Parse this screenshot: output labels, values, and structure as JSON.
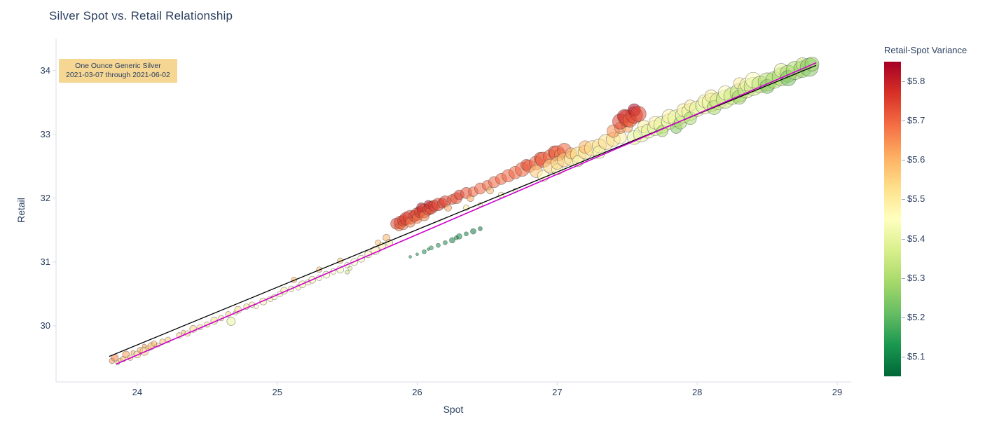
{
  "chart_data": {
    "type": "scatter",
    "title": "Silver Spot vs. Retail Relationship",
    "xlabel": "Spot",
    "ylabel": "Retail",
    "xlim": [
      23.42,
      29.1
    ],
    "ylim": [
      29.12,
      34.5
    ],
    "xticks": [
      24,
      25,
      26,
      27,
      28,
      29
    ],
    "yticks": [
      30,
      31,
      32,
      33,
      34
    ],
    "grid": false,
    "annotation": {
      "line1": "One Ounce Generic Silver",
      "line2": "2021-03-07 through 2021-06-02",
      "bg_color": "#f5d693"
    },
    "colorbar": {
      "title": "Retail-Spot Variance",
      "min": 5.05,
      "max": 5.85,
      "ticks": [
        {
          "value": 5.8,
          "label": "$5.8"
        },
        {
          "value": 5.7,
          "label": "$5.7"
        },
        {
          "value": 5.6,
          "label": "$5.6"
        },
        {
          "value": 5.5,
          "label": "$5.5"
        },
        {
          "value": 5.4,
          "label": "$5.4"
        },
        {
          "value": 5.3,
          "label": "$5.3"
        },
        {
          "value": 5.2,
          "label": "$5.2"
        },
        {
          "value": 5.1,
          "label": "$5.1"
        }
      ]
    },
    "colorscale": [
      [
        0,
        "#006837"
      ],
      [
        0.1,
        "#1a9850"
      ],
      [
        0.2,
        "#66bd63"
      ],
      [
        0.3,
        "#a6d96a"
      ],
      [
        0.4,
        "#d9ef8b"
      ],
      [
        0.5,
        "#ffffbf"
      ],
      [
        0.6,
        "#fee08b"
      ],
      [
        0.7,
        "#fdae61"
      ],
      [
        0.8,
        "#f46d43"
      ],
      [
        0.9,
        "#d73027"
      ],
      [
        1,
        "#a50026"
      ]
    ],
    "color_note": "marker color = retail - spot (variance)",
    "trend_lines": [
      {
        "name": "trend-line-black",
        "color": "#000000",
        "width": 1.3,
        "x0": 23.8,
        "y0": 29.52,
        "x1": 28.85,
        "y1": 34.08
      },
      {
        "name": "trend-line-magenta",
        "color": "#cc00cc",
        "width": 1.6,
        "x0": 23.85,
        "y0": 29.4,
        "x1": 28.85,
        "y1": 34.12
      }
    ],
    "points_format": [
      "spot",
      "retail",
      "marker_radius_px"
    ],
    "points": [
      [
        23.82,
        29.45,
        4
      ],
      [
        23.84,
        29.5,
        5
      ],
      [
        23.86,
        29.42,
        3
      ],
      [
        23.88,
        29.46,
        3
      ],
      [
        23.9,
        29.48,
        4
      ],
      [
        23.92,
        29.55,
        5
      ],
      [
        23.95,
        29.5,
        4
      ],
      [
        23.97,
        29.58,
        3
      ],
      [
        24.0,
        29.55,
        5
      ],
      [
        24.02,
        29.62,
        4
      ],
      [
        24.05,
        29.6,
        6
      ],
      [
        24.05,
        29.68,
        3
      ],
      [
        24.08,
        29.65,
        4
      ],
      [
        24.1,
        29.68,
        5
      ],
      [
        24.12,
        29.72,
        4
      ],
      [
        24.15,
        29.7,
        3
      ],
      [
        24.18,
        29.75,
        4
      ],
      [
        24.22,
        29.78,
        4
      ],
      [
        24.3,
        29.85,
        4
      ],
      [
        24.33,
        29.9,
        3
      ],
      [
        24.36,
        29.88,
        4
      ],
      [
        24.4,
        29.95,
        5
      ],
      [
        24.45,
        29.98,
        4
      ],
      [
        24.5,
        30.02,
        4
      ],
      [
        24.55,
        30.08,
        5
      ],
      [
        24.6,
        30.12,
        4
      ],
      [
        24.65,
        30.18,
        4
      ],
      [
        24.67,
        30.07,
        6
      ],
      [
        24.7,
        30.2,
        3
      ],
      [
        24.72,
        30.25,
        5
      ],
      [
        24.78,
        30.3,
        4
      ],
      [
        24.82,
        30.33,
        4
      ],
      [
        24.85,
        30.3,
        3
      ],
      [
        24.9,
        30.38,
        5
      ],
      [
        24.95,
        30.42,
        4
      ],
      [
        24.98,
        30.45,
        4
      ],
      [
        25.02,
        30.5,
        4
      ],
      [
        25.05,
        30.55,
        5
      ],
      [
        25.1,
        30.58,
        4
      ],
      [
        25.12,
        30.72,
        4
      ],
      [
        25.15,
        30.6,
        4
      ],
      [
        25.18,
        30.65,
        5
      ],
      [
        25.22,
        30.68,
        4
      ],
      [
        25.25,
        30.72,
        5
      ],
      [
        25.3,
        30.75,
        4
      ],
      [
        25.3,
        30.88,
        4
      ],
      [
        25.35,
        30.8,
        5
      ],
      [
        25.4,
        30.85,
        4
      ],
      [
        25.45,
        30.88,
        5
      ],
      [
        25.45,
        31.02,
        4
      ],
      [
        25.5,
        30.95,
        4
      ],
      [
        25.5,
        30.84,
        3
      ],
      [
        25.52,
        30.9,
        3
      ],
      [
        25.55,
        31.0,
        5
      ],
      [
        25.6,
        31.05,
        5
      ],
      [
        25.65,
        31.12,
        5
      ],
      [
        25.7,
        31.18,
        6
      ],
      [
        25.72,
        31.3,
        4
      ],
      [
        25.75,
        31.25,
        5
      ],
      [
        25.78,
        31.38,
        5
      ],
      [
        25.8,
        31.3,
        5
      ],
      [
        25.85,
        31.6,
        8
      ],
      [
        25.87,
        31.55,
        6
      ],
      [
        25.88,
        31.62,
        9
      ],
      [
        25.9,
        31.58,
        7
      ],
      [
        25.9,
        31.65,
        8
      ],
      [
        25.92,
        31.68,
        9
      ],
      [
        25.95,
        31.7,
        10
      ],
      [
        25.95,
        31.62,
        7
      ],
      [
        25.98,
        31.72,
        8
      ],
      [
        26.0,
        31.75,
        9
      ],
      [
        26.0,
        31.68,
        7
      ],
      [
        26.02,
        31.78,
        8
      ],
      [
        26.03,
        31.85,
        7
      ],
      [
        26.05,
        31.8,
        10
      ],
      [
        26.05,
        31.72,
        7
      ],
      [
        26.08,
        31.82,
        8
      ],
      [
        26.08,
        31.9,
        6
      ],
      [
        26.1,
        31.85,
        9
      ],
      [
        26.12,
        31.88,
        8
      ],
      [
        26.15,
        31.9,
        9
      ],
      [
        26.18,
        31.92,
        7
      ],
      [
        26.2,
        31.95,
        8
      ],
      [
        26.22,
        31.85,
        5
      ],
      [
        26.25,
        31.98,
        7
      ],
      [
        26.28,
        32.0,
        8
      ],
      [
        26.3,
        32.05,
        7
      ],
      [
        26.35,
        32.08,
        8
      ],
      [
        26.38,
        32.0,
        5
      ],
      [
        26.4,
        32.1,
        7
      ],
      [
        26.45,
        32.15,
        8
      ],
      [
        26.5,
        32.2,
        7
      ],
      [
        26.52,
        32.12,
        5
      ],
      [
        26.55,
        32.25,
        8
      ],
      [
        26.6,
        32.3,
        8
      ],
      [
        26.65,
        32.35,
        9
      ],
      [
        26.35,
        31.85,
        4
      ],
      [
        26.45,
        31.9,
        3
      ],
      [
        26.6,
        32.05,
        4
      ],
      [
        26.7,
        32.12,
        3
      ],
      [
        25.95,
        31.08,
        2
      ],
      [
        26.0,
        31.12,
        2
      ],
      [
        26.05,
        31.16,
        3
      ],
      [
        26.08,
        31.2,
        2
      ],
      [
        26.1,
        31.22,
        3
      ],
      [
        26.15,
        31.26,
        3
      ],
      [
        26.2,
        31.3,
        3
      ],
      [
        26.25,
        31.34,
        4
      ],
      [
        26.28,
        31.38,
        3
      ],
      [
        26.3,
        31.4,
        4
      ],
      [
        26.35,
        31.44,
        3
      ],
      [
        26.4,
        31.48,
        4
      ],
      [
        26.45,
        31.52,
        3
      ],
      [
        26.7,
        32.4,
        9
      ],
      [
        26.75,
        32.45,
        10
      ],
      [
        26.78,
        32.52,
        8
      ],
      [
        26.8,
        32.5,
        9
      ],
      [
        26.85,
        32.55,
        10
      ],
      [
        26.88,
        32.62,
        9
      ],
      [
        26.9,
        32.6,
        11
      ],
      [
        26.95,
        32.65,
        10
      ],
      [
        26.98,
        32.72,
        9
      ],
      [
        27.0,
        32.7,
        11
      ],
      [
        27.02,
        32.68,
        8
      ],
      [
        27.05,
        32.75,
        10
      ],
      [
        26.85,
        32.42,
        9
      ],
      [
        26.9,
        32.35,
        8
      ],
      [
        26.95,
        32.5,
        10
      ],
      [
        27.0,
        32.45,
        8
      ],
      [
        27.0,
        32.55,
        9
      ],
      [
        27.05,
        32.6,
        10
      ],
      [
        27.1,
        32.62,
        10
      ],
      [
        27.1,
        32.7,
        8
      ],
      [
        27.15,
        32.68,
        11
      ],
      [
        27.15,
        32.58,
        8
      ],
      [
        27.2,
        32.72,
        10
      ],
      [
        27.2,
        32.8,
        9
      ],
      [
        27.25,
        32.78,
        11
      ],
      [
        27.3,
        32.82,
        10
      ],
      [
        27.3,
        32.72,
        9
      ],
      [
        27.35,
        32.88,
        11
      ],
      [
        27.4,
        32.92,
        10
      ],
      [
        27.45,
        32.95,
        9
      ],
      [
        27.4,
        33.05,
        9
      ],
      [
        27.45,
        33.1,
        8
      ],
      [
        27.5,
        33.12,
        8
      ],
      [
        27.45,
        33.2,
        11
      ],
      [
        27.48,
        33.28,
        10
      ],
      [
        27.5,
        33.25,
        12
      ],
      [
        27.52,
        33.22,
        10
      ],
      [
        27.55,
        33.3,
        12
      ],
      [
        27.55,
        33.38,
        9
      ],
      [
        27.58,
        33.32,
        11
      ],
      [
        27.55,
        32.95,
        10
      ],
      [
        27.6,
        33.0,
        11
      ],
      [
        27.62,
        33.12,
        9
      ],
      [
        27.65,
        33.05,
        10
      ],
      [
        27.7,
        33.1,
        11
      ],
      [
        27.7,
        33.18,
        9
      ],
      [
        27.75,
        33.15,
        12
      ],
      [
        27.75,
        33.05,
        8
      ],
      [
        27.8,
        33.2,
        11
      ],
      [
        27.8,
        33.28,
        10
      ],
      [
        27.85,
        33.25,
        12
      ],
      [
        27.85,
        33.1,
        8
      ],
      [
        27.88,
        33.18,
        9
      ],
      [
        27.9,
        33.3,
        11
      ],
      [
        27.9,
        33.38,
        9
      ],
      [
        27.95,
        33.35,
        12
      ],
      [
        27.95,
        33.25,
        9
      ],
      [
        27.95,
        33.45,
        8
      ],
      [
        28.0,
        33.4,
        11
      ],
      [
        28.05,
        33.45,
        12
      ],
      [
        28.05,
        33.52,
        9
      ],
      [
        28.1,
        33.5,
        13
      ],
      [
        28.1,
        33.6,
        9
      ],
      [
        28.12,
        33.42,
        10
      ],
      [
        28.15,
        33.52,
        12
      ],
      [
        28.2,
        33.55,
        13
      ],
      [
        28.2,
        33.65,
        10
      ],
      [
        28.25,
        33.6,
        12
      ],
      [
        28.3,
        33.65,
        13
      ],
      [
        28.3,
        33.58,
        10
      ],
      [
        28.3,
        33.8,
        8
      ],
      [
        28.35,
        33.7,
        12
      ],
      [
        28.35,
        33.78,
        9
      ],
      [
        28.4,
        33.75,
        13
      ],
      [
        28.4,
        33.85,
        11
      ],
      [
        28.45,
        33.78,
        12
      ],
      [
        28.5,
        33.82,
        13
      ],
      [
        28.5,
        33.75,
        10
      ],
      [
        28.55,
        33.85,
        12
      ],
      [
        28.6,
        33.9,
        13
      ],
      [
        28.6,
        34.0,
        10
      ],
      [
        28.65,
        33.95,
        12
      ],
      [
        28.65,
        33.88,
        11
      ],
      [
        28.7,
        34.0,
        13
      ],
      [
        28.75,
        34.02,
        12
      ],
      [
        28.75,
        34.1,
        9
      ],
      [
        28.8,
        34.05,
        13
      ],
      [
        28.82,
        34.1,
        10
      ]
    ]
  }
}
